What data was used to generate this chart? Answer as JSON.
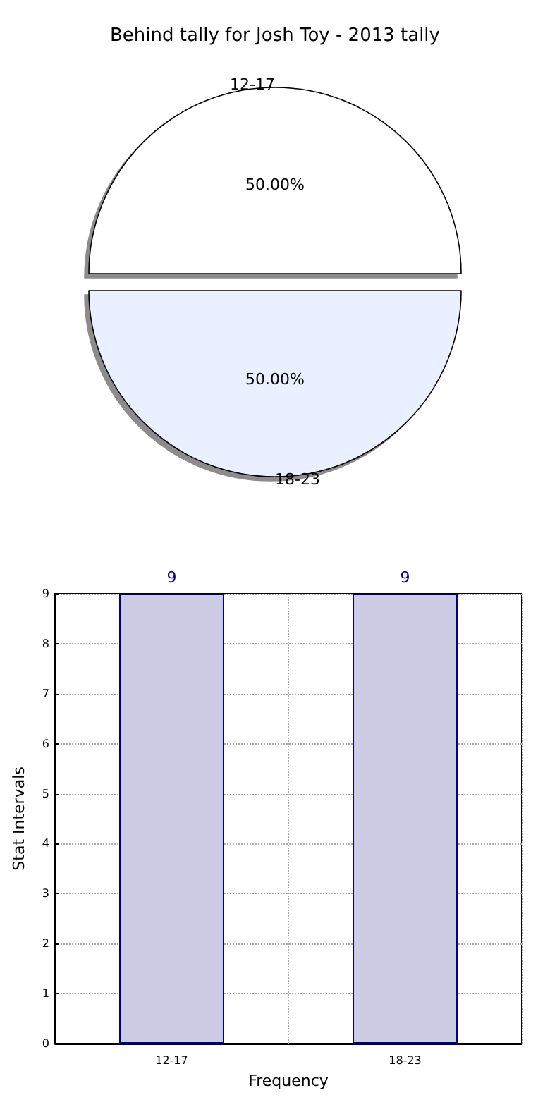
{
  "chart_data": [
    {
      "type": "pie",
      "title": "Behind tally for Josh Toy - 2013 tally",
      "categories": [
        "12-17",
        "18-23"
      ],
      "values": [
        50,
        50
      ],
      "colors": [
        "#ffffff",
        "#eaf0ff"
      ],
      "value_labels": [
        "50.00%",
        "50.00%"
      ]
    },
    {
      "type": "bar",
      "categories": [
        "12-17",
        "18-23"
      ],
      "values": [
        9,
        9
      ],
      "color": "#cccce4",
      "xlabel": "Frequency",
      "ylabel": "Stat Intervals",
      "ylim": [
        0,
        9
      ],
      "yticks": [
        0,
        1,
        2,
        3,
        4,
        5,
        6,
        7,
        8,
        9
      ],
      "grid": true,
      "data_labels": true,
      "line_style": "dotted"
    }
  ]
}
